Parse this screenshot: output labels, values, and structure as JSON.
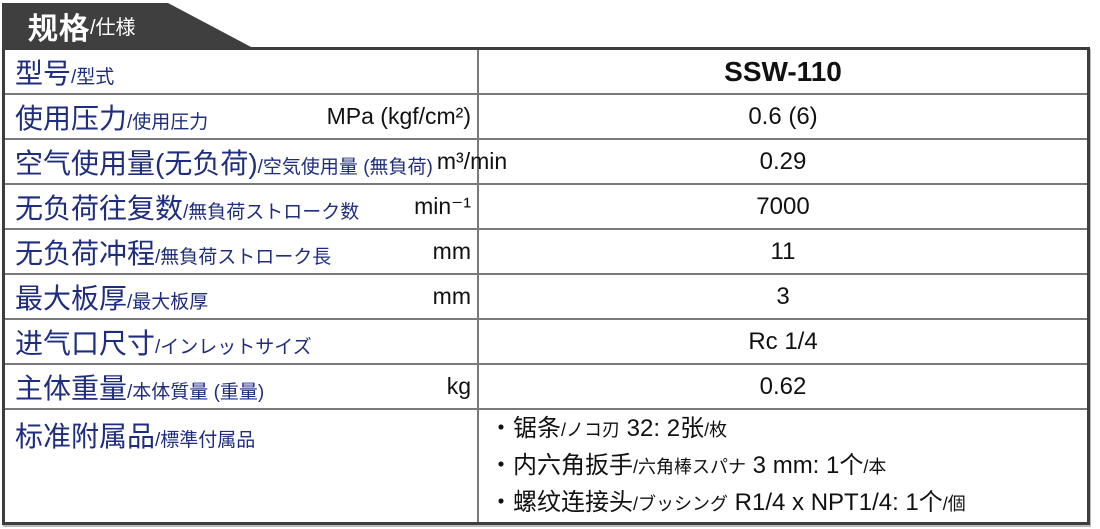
{
  "colors": {
    "banner_bg": "#3f3f3f",
    "label_blue": "#1f2d7f",
    "outer_border": "#3d3d3d",
    "grid_line": "#7a7a7a",
    "text_black": "#111111"
  },
  "banner": {
    "title_zh": "规格",
    "title_jp": "/仕様"
  },
  "table": {
    "rows": [
      {
        "key": "model",
        "label_zh": "型号",
        "label_jp": "/型式",
        "unit": "",
        "value": "SSW-110",
        "bold": true
      },
      {
        "key": "operating-pressure",
        "label_zh": "使用压力",
        "label_jp": "/使用圧力",
        "unit": "MPa (kgf/cm²)",
        "value": "0.6 (6)"
      },
      {
        "key": "air-consumption",
        "label_zh": "空气使用量(无负荷)",
        "label_jp": "/空気使用量 (無負荷)",
        "unit": "m³/min",
        "value": "0.29"
      },
      {
        "key": "no-load-strokes",
        "label_zh": "无负荷往复数",
        "label_jp": "/無負荷ストローク数",
        "unit": "min⁻¹",
        "value": "7000"
      },
      {
        "key": "no-load-stroke-length",
        "label_zh": "无负荷冲程",
        "label_jp": "/無負荷ストローク長",
        "unit": "mm",
        "value": "11"
      },
      {
        "key": "max-plate-thickness",
        "label_zh": "最大板厚",
        "label_jp": "/最大板厚",
        "unit": "mm",
        "value": "3"
      },
      {
        "key": "inlet-size",
        "label_zh": "进气口尺寸",
        "label_jp": "/インレットサイズ",
        "unit": "",
        "value": "Rc 1/4"
      },
      {
        "key": "body-weight",
        "label_zh": "主体重量",
        "label_jp": "/本体質量 (重量)",
        "unit": "kg",
        "value": "0.62"
      },
      {
        "key": "standard-accessories",
        "label_zh": "标准附属品",
        "label_jp": "/標準付属品",
        "unit": "",
        "tall": true,
        "bullets": [
          [
            {
              "text": "・锯条",
              "size": "big"
            },
            {
              "text": "/ノコ刃",
              "size": "small"
            },
            {
              "text": " 32: 2张",
              "size": "big"
            },
            {
              "text": "/枚",
              "size": "small"
            }
          ],
          [
            {
              "text": "・内六角扳手",
              "size": "big"
            },
            {
              "text": "/六角棒スパナ",
              "size": "small"
            },
            {
              "text": " 3 mm: 1个",
              "size": "big"
            },
            {
              "text": "/本",
              "size": "small"
            }
          ],
          [
            {
              "text": "・螺纹连接头",
              "size": "big"
            },
            {
              "text": "/ブッシング",
              "size": "small"
            },
            {
              "text": " R1/4 x NPT1/4: 1个",
              "size": "big"
            },
            {
              "text": "/個",
              "size": "small"
            }
          ]
        ]
      }
    ]
  }
}
